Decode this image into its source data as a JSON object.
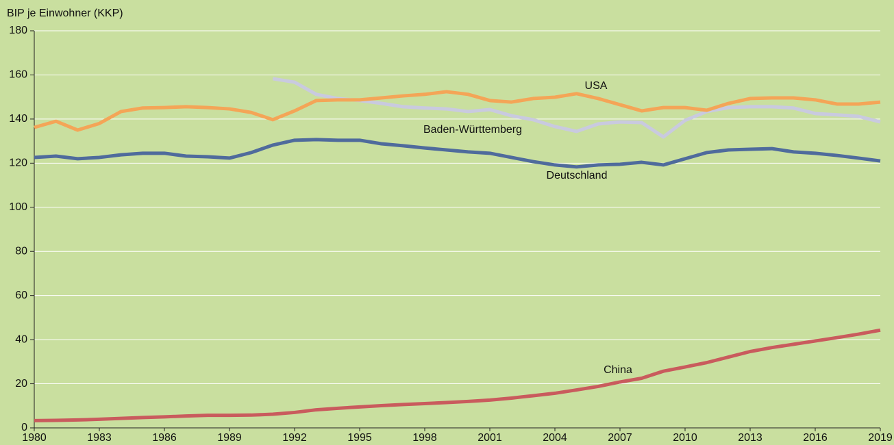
{
  "chart_data": {
    "type": "line",
    "y_label": "BIP je Einwohner (KKP)",
    "x": [
      1980,
      1981,
      1982,
      1983,
      1984,
      1985,
      1986,
      1987,
      1988,
      1989,
      1990,
      1991,
      1992,
      1993,
      1994,
      1995,
      1996,
      1997,
      1998,
      1999,
      2000,
      2001,
      2002,
      2003,
      2004,
      2005,
      2006,
      2007,
      2008,
      2009,
      2010,
      2011,
      2012,
      2013,
      2014,
      2015,
      2016,
      2017,
      2018,
      2019
    ],
    "series": [
      {
        "name": "USA",
        "color": "#f4a557",
        "values": [
          136.2,
          139,
          135,
          138,
          143.4,
          145,
          145.2,
          145.6,
          145.2,
          144.6,
          143,
          139.7,
          143.7,
          148.4,
          148.7,
          148.7,
          149.6,
          150.5,
          151.2,
          152.4,
          151.2,
          148.4,
          147.7,
          149.3,
          149.9,
          151.5,
          149.3,
          146.5,
          143.7,
          145.2,
          145.2,
          144,
          147.1,
          149.3,
          149.6,
          149.6,
          148.7,
          146.8,
          146.8,
          147.7
        ]
      },
      {
        "name": "Baden-Württemberg",
        "color": "#c9cadf",
        "values": [
          null,
          null,
          null,
          null,
          null,
          null,
          null,
          null,
          null,
          null,
          null,
          158.3,
          156.7,
          151.2,
          149.3,
          148.4,
          147.1,
          145.6,
          145,
          144.6,
          143.4,
          144.3,
          141.5,
          139.7,
          136.6,
          134.4,
          137.8,
          138.7,
          138.4,
          131.9,
          139.4,
          143.4,
          145.2,
          145.6,
          145.6,
          145,
          142.5,
          141.9,
          141.2,
          138.7
        ]
      },
      {
        "name": "Deutschland",
        "color": "#4f6b9c",
        "values": [
          122.6,
          123.2,
          122,
          122.6,
          123.8,
          124.5,
          124.5,
          123.2,
          122.9,
          122.3,
          124.8,
          128.2,
          130.4,
          130.7,
          130.4,
          130.4,
          128.8,
          127.9,
          126.9,
          126,
          125.1,
          124.5,
          122.6,
          120.7,
          119.2,
          118.3,
          119.2,
          119.5,
          120.4,
          119.2,
          122,
          124.8,
          126,
          126.3,
          126.6,
          125.1,
          124.5,
          123.5,
          122.3,
          121
        ]
      },
      {
        "name": "China",
        "color": "#c95b5d",
        "values": [
          3.3,
          3.4,
          3.6,
          3.9,
          4.3,
          4.7,
          5,
          5.4,
          5.7,
          5.7,
          5.8,
          6.2,
          7,
          8.2,
          8.9,
          9.5,
          10.1,
          10.6,
          11,
          11.5,
          12,
          12.6,
          13.5,
          14.6,
          15.7,
          17.2,
          18.8,
          20.8,
          22.5,
          25.7,
          27.6,
          29.6,
          32.1,
          34.6,
          36.4,
          37.9,
          39.4,
          40.9,
          42.5,
          44.3
        ]
      }
    ],
    "xlim": [
      1980,
      2019
    ],
    "xticks": [
      1980,
      1983,
      1986,
      1989,
      1992,
      1995,
      1998,
      2001,
      2004,
      2007,
      2010,
      2013,
      2016,
      2019
    ],
    "ylim": [
      0,
      180
    ],
    "yticks": [
      0,
      20,
      40,
      60,
      80,
      100,
      120,
      140,
      160,
      180
    ],
    "grid": true
  }
}
